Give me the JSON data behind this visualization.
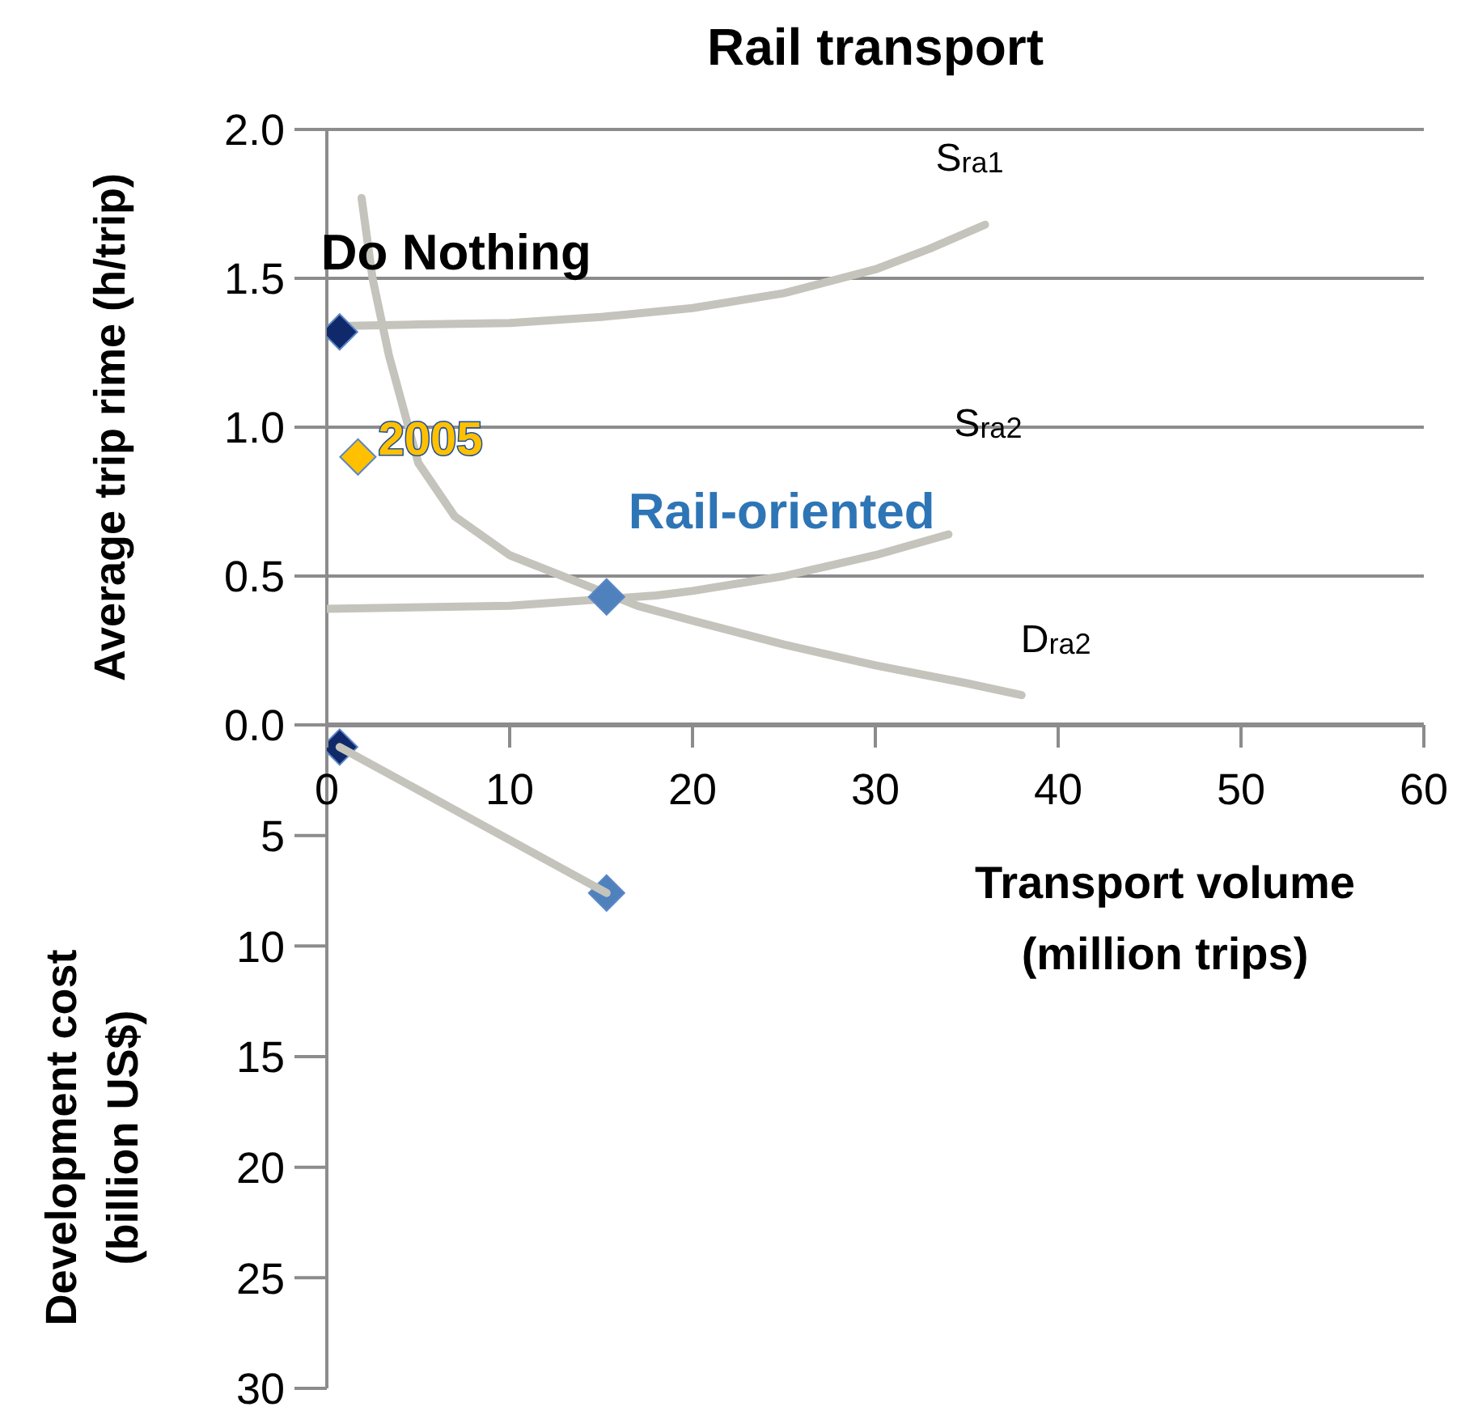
{
  "chart_data": [
    {
      "type": "scatter",
      "title": "Rail transport",
      "ylabel": "Average trip rime (h/trip)",
      "xlim": [
        0,
        60
      ],
      "xticks": [
        0,
        10,
        20,
        30,
        40,
        50,
        60
      ],
      "ylim": [
        0,
        2
      ],
      "yticks": [
        {
          "value": 0,
          "label": "0.0"
        },
        {
          "value": 0.5,
          "label": "0.5"
        },
        {
          "value": 1,
          "label": "1.0"
        },
        {
          "value": 1.5,
          "label": "1.5"
        },
        {
          "value": 2,
          "label": "2.0"
        }
      ],
      "grid": "y",
      "series": [
        {
          "type": "line",
          "name": "S$_{ra1}$",
          "color": "#c4c4bc",
          "x": [
            0.7,
            5,
            10,
            15,
            20,
            25,
            30,
            33,
            36
          ],
          "values": [
            1.34,
            1.345,
            1.35,
            1.37,
            1.4,
            1.45,
            1.53,
            1.6,
            1.68
          ]
        },
        {
          "type": "line",
          "name": "S$_{ra2}$",
          "color": "#c4c4bc",
          "x": [
            0,
            10,
            18,
            20,
            25,
            30,
            34
          ],
          "values": [
            0.39,
            0.4,
            0.435,
            0.45,
            0.5,
            0.57,
            0.64
          ]
        },
        {
          "type": "line",
          "name": "D$_{ra2}$",
          "color": "#c4c4bc",
          "x": [
            1.9,
            2.5,
            3.4,
            5,
            7,
            10,
            17,
            20,
            25,
            30,
            35,
            38
          ],
          "values": [
            1.77,
            1.5,
            1.24,
            0.88,
            0.7,
            0.57,
            0.4,
            0.35,
            0.27,
            0.2,
            0.14,
            0.1
          ]
        },
        {
          "type": "scatter",
          "name": "Do Nothing",
          "marker": "diamond",
          "color": "#10296a",
          "x": [
            0.7
          ],
          "values": [
            1.32
          ]
        },
        {
          "type": "scatter",
          "name": "2005",
          "marker": "diamond",
          "color": "#ffc000",
          "x": [
            1.7
          ],
          "values": [
            0.9
          ]
        },
        {
          "type": "scatter",
          "name": "Rail-oriented",
          "marker": "diamond",
          "color": "#4f81bd",
          "x": [
            15.3
          ],
          "values": [
            0.43
          ]
        }
      ]
    },
    {
      "type": "scatter",
      "xlabel": "Transport volume (million trips)",
      "ylabel": "Development cost (billion US$)",
      "xlim": [
        0,
        60
      ],
      "ylim": [
        30,
        0
      ],
      "yticks": [
        5,
        10,
        15,
        20,
        25,
        30
      ],
      "tick_labels": "y",
      "series": [
        {
          "type": "scatter",
          "marker": "diamond",
          "x": [
            0.7,
            15.3
          ],
          "values": [
            1.0,
            7.6
          ],
          "colors": [
            "#10296a",
            "#4f81bd"
          ]
        },
        {
          "type": "line",
          "color": "#c4c4bc",
          "x": [
            0.7,
            15.3
          ],
          "values": [
            1.0,
            7.6
          ]
        }
      ]
    }
  ]
}
